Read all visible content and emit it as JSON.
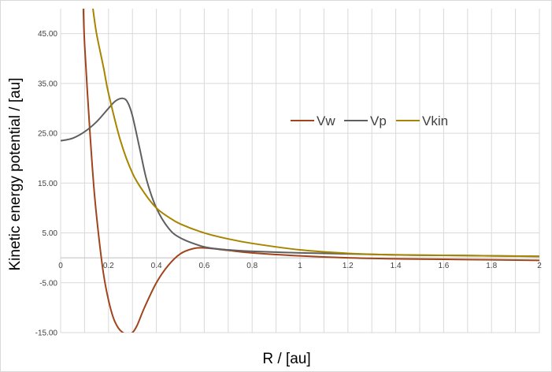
{
  "chart_data": {
    "type": "line",
    "title": "",
    "xlabel": "R / [au]",
    "ylabel": "Kinetic energy potential / [au]",
    "xlim": [
      0,
      2
    ],
    "ylim": [
      -15,
      50
    ],
    "grid": true,
    "legend_position": "top-right",
    "y_ticks": [
      "-15.00",
      "-5.00",
      "5.00",
      "15.00",
      "25.00",
      "35.00",
      "45.00"
    ],
    "y_tick_values": [
      -15,
      -5,
      5,
      15,
      25,
      35,
      45
    ],
    "x_ticks": [
      "0",
      "0.2",
      "0.4",
      "0.6",
      "0.8",
      "1",
      "1.2",
      "1.4",
      "1.6",
      "1.8",
      "2"
    ],
    "x_tick_values": [
      0,
      0.2,
      0.4,
      0.6,
      0.8,
      1.0,
      1.2,
      1.4,
      1.6,
      1.8,
      2.0
    ],
    "series": [
      {
        "name": "Vw",
        "color": "#a0441c",
        "x": [
          0.095,
          0.1,
          0.12,
          0.14,
          0.16,
          0.18,
          0.2,
          0.22,
          0.24,
          0.26,
          0.28,
          0.3,
          0.32,
          0.35,
          0.4,
          0.45,
          0.5,
          0.55,
          0.6,
          0.7,
          0.8,
          1.0,
          1.2,
          1.4,
          1.6,
          1.8,
          2.0
        ],
        "y": [
          50.0,
          43.0,
          27.0,
          13.5,
          4.0,
          -3.5,
          -8.5,
          -12.0,
          -14.0,
          -15.0,
          -15.3,
          -15.0,
          -13.5,
          -10.0,
          -5.0,
          -1.5,
          0.8,
          1.8,
          2.0,
          1.5,
          1.0,
          0.4,
          0.0,
          -0.2,
          -0.3,
          -0.4,
          -0.5
        ]
      },
      {
        "name": "Vp",
        "color": "#5f5f5f",
        "x": [
          0.0,
          0.05,
          0.1,
          0.15,
          0.2,
          0.23,
          0.26,
          0.28,
          0.3,
          0.33,
          0.36,
          0.4,
          0.45,
          0.5,
          0.6,
          0.7,
          0.8,
          1.0,
          1.2,
          1.4,
          1.6,
          1.8,
          2.0
        ],
        "y": [
          23.5,
          24.0,
          25.3,
          27.3,
          30.0,
          31.5,
          32.0,
          31.2,
          28.5,
          22.0,
          15.5,
          10.0,
          6.0,
          4.0,
          2.2,
          1.6,
          1.3,
          1.0,
          0.8,
          0.6,
          0.5,
          0.4,
          0.3
        ]
      },
      {
        "name": "Vkin",
        "color": "#a78500",
        "x": [
          0.135,
          0.15,
          0.18,
          0.2,
          0.25,
          0.3,
          0.35,
          0.4,
          0.45,
          0.5,
          0.6,
          0.7,
          0.8,
          1.0,
          1.2,
          1.4,
          1.6,
          1.8,
          2.0
        ],
        "y": [
          50.0,
          45.0,
          38.0,
          33.0,
          23.5,
          17.0,
          13.0,
          10.0,
          8.2,
          6.8,
          5.0,
          3.8,
          2.9,
          1.6,
          0.9,
          0.6,
          0.5,
          0.4,
          0.3
        ]
      }
    ]
  }
}
